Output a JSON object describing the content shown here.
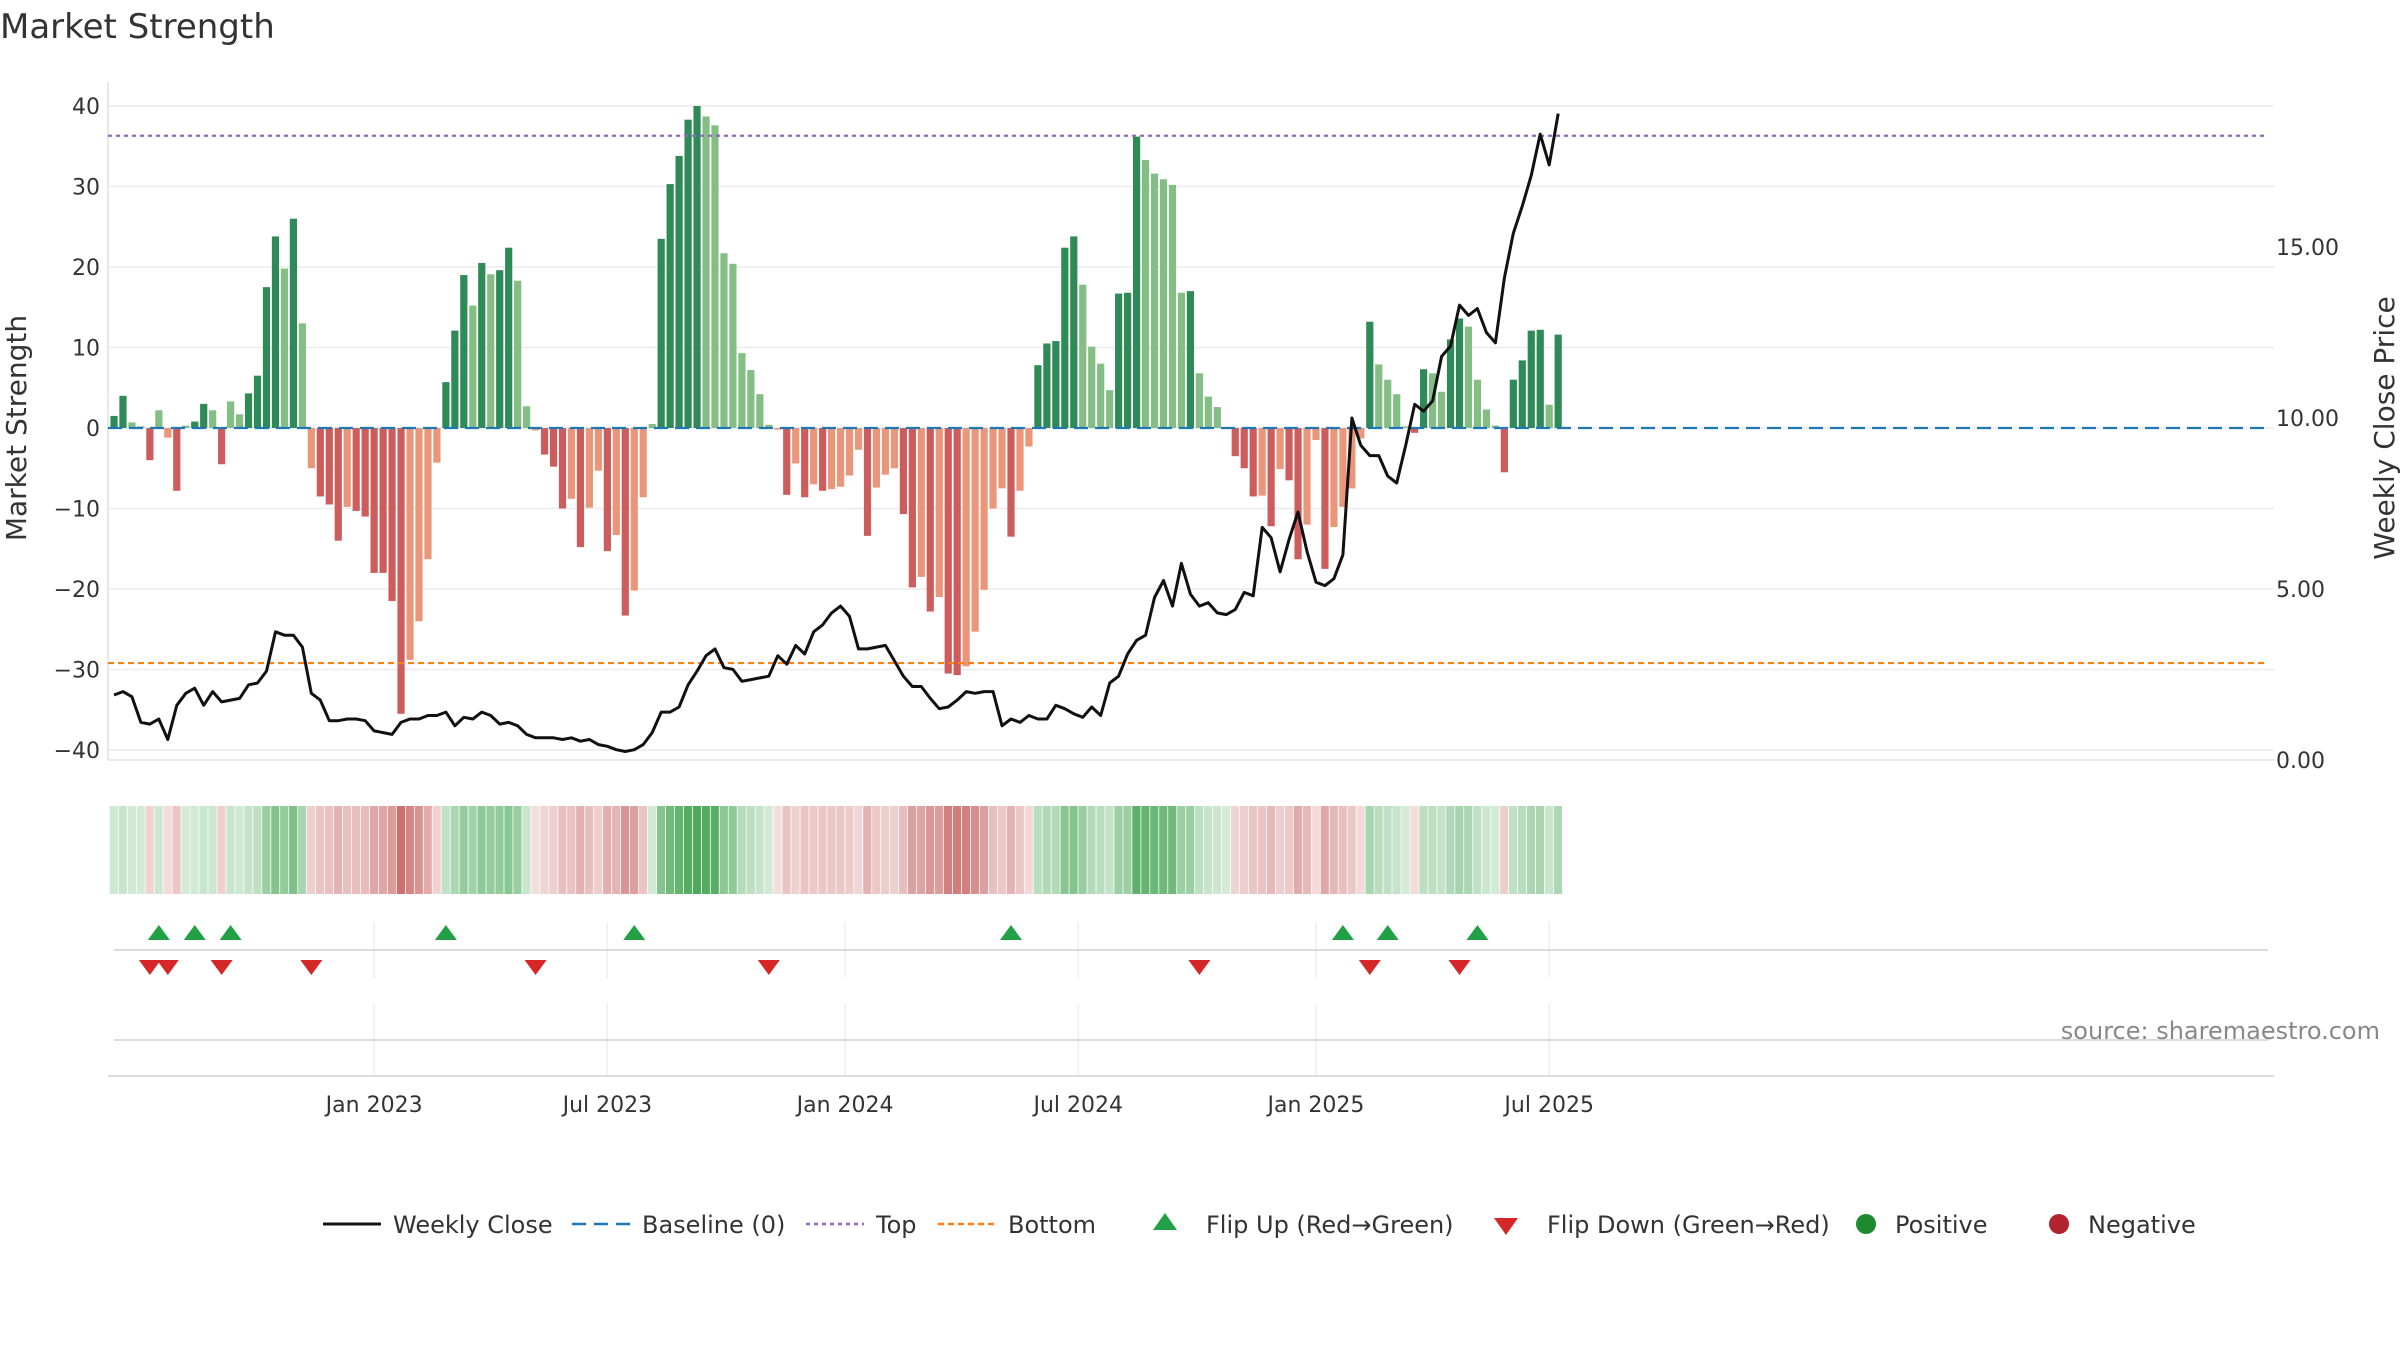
{
  "chart_data": {
    "type": "bar",
    "title": "Market Strength",
    "ylabel_left": "Market Strength",
    "ylabel_right": "Weekly Close Price",
    "left_axis": {
      "range": [
        -42,
        40
      ],
      "ticks": [
        40,
        30,
        20,
        10,
        0,
        -10,
        -20,
        -30,
        -40
      ],
      "tick_labels": [
        "40",
        "30",
        "20",
        "10",
        "0",
        "−10",
        "−20",
        "−30",
        "−40"
      ]
    },
    "right_axis": {
      "range": [
        0,
        20.2
      ],
      "ticks": [
        0,
        5,
        10,
        15
      ],
      "tick_labels": [
        "0.00",
        "5.00",
        "10.00",
        "15.00"
      ]
    },
    "x_ticks": [
      {
        "label": "Jan 2023",
        "week": 29
      },
      {
        "label": "Jul 2023",
        "week": 55
      },
      {
        "label": "Jan 2024",
        "week": 81.5
      },
      {
        "label": "Jul 2024",
        "week": 107.5
      },
      {
        "label": "Jan 2025",
        "week": 134
      },
      {
        "label": "Jul 2025",
        "week": 160
      }
    ],
    "top_level": 36.3,
    "bottom_level": -29.2,
    "strength": [
      1.5,
      4,
      0.7,
      0.2,
      -4,
      2.2,
      -1.2,
      -7.8,
      0.3,
      0.8,
      3,
      2.2,
      -4.5,
      3.3,
      1.7,
      4.3,
      6.5,
      17.5,
      23.8,
      19.8,
      26,
      13,
      -5,
      -8.5,
      -9.5,
      -14,
      -9.8,
      -10.3,
      -11,
      -18,
      -18,
      -21.5,
      -35.5,
      -28.8,
      -24,
      -16.3,
      -4.3,
      5.7,
      12.1,
      19,
      15.2,
      20.5,
      19.1,
      19.6,
      22.4,
      18.3,
      2.7,
      -0.3,
      -3.3,
      -4.8,
      -10,
      -8.8,
      -14.8,
      -9.9,
      -5.3,
      -15.3,
      -13.3,
      -23.3,
      -20.2,
      -8.6,
      0.5,
      23.5,
      30.3,
      33.8,
      38.3,
      40,
      38.7,
      37.6,
      21.7,
      20.4,
      9.3,
      7.2,
      4.2,
      0.4,
      -0.2,
      -8.3,
      -4.4,
      -8.6,
      -7,
      -7.8,
      -7.6,
      -7.3,
      -5.9,
      -2.7,
      -13.4,
      -7.4,
      -5.8,
      -5,
      -10.7,
      -19.8,
      -18.5,
      -22.8,
      -21,
      -30.5,
      -30.7,
      -29.6,
      -25.3,
      -20.1,
      -10,
      -7.5,
      -13.5,
      -7.8,
      -2.3,
      7.8,
      10.5,
      10.8,
      22.4,
      23.8,
      17.8,
      10.1,
      8,
      4.7,
      16.7,
      16.8,
      36.2,
      33.3,
      31.6,
      30.9,
      30.2,
      16.8,
      17,
      6.8,
      3.9,
      2.6,
      0,
      -3.5,
      -5,
      -8.5,
      -8.4,
      -12.2,
      -5.1,
      -6.5,
      -16.3,
      -12,
      -1.5,
      -17.5,
      -12.3,
      -9.8,
      -7.5,
      -1.3,
      13.2,
      7.9,
      6,
      4.2,
      0.2,
      -0.6,
      7.3,
      6.8,
      4.5,
      11,
      13.6,
      12.6,
      6,
      2.3,
      0.3,
      -5.5,
      6,
      8.4,
      12.1,
      12.2,
      2.9,
      11.6
    ],
    "weekly_close": [
      1.9,
      2,
      1.85,
      1.1,
      1.05,
      1.2,
      0.6,
      1.6,
      1.95,
      2.1,
      1.6,
      2,
      1.7,
      1.75,
      1.8,
      2.2,
      2.25,
      2.6,
      3.75,
      3.65,
      3.65,
      3.3,
      1.95,
      1.75,
      1.15,
      1.15,
      1.2,
      1.2,
      1.15,
      0.85,
      0.8,
      0.75,
      1.1,
      1.2,
      1.2,
      1.3,
      1.3,
      1.4,
      1,
      1.25,
      1.2,
      1.4,
      1.3,
      1.05,
      1.1,
      1,
      0.75,
      0.65,
      0.65,
      0.65,
      0.6,
      0.65,
      0.55,
      0.6,
      0.45,
      0.4,
      0.3,
      0.25,
      0.3,
      0.45,
      0.8,
      1.4,
      1.4,
      1.55,
      2.2,
      2.6,
      3.05,
      3.25,
      2.7,
      2.65,
      2.3,
      2.35,
      2.4,
      2.45,
      3.05,
      2.8,
      3.35,
      3.1,
      3.75,
      3.95,
      4.3,
      4.5,
      4.2,
      3.25,
      3.25,
      3.3,
      3.35,
      2.9,
      2.45,
      2.15,
      2.15,
      1.8,
      1.5,
      1.55,
      1.75,
      2,
      1.95,
      2,
      2,
      1,
      1.2,
      1.1,
      1.3,
      1.2,
      1.2,
      1.6,
      1.5,
      1.35,
      1.25,
      1.55,
      1.3,
      2.25,
      2.45,
      3.1,
      3.5,
      3.65,
      4.75,
      5.25,
      4.5,
      5.75,
      4.85,
      4.5,
      4.6,
      4.3,
      4.25,
      4.4,
      4.9,
      4.8,
      6.8,
      6.5,
      5.5,
      6.45,
      7.25,
      6.1,
      5.2,
      5.1,
      5.3,
      6,
      10,
      9.2,
      8.9,
      8.9,
      8.3,
      8.1,
      9.2,
      10.4,
      10.2,
      10.5,
      11.8,
      12.1,
      13.3,
      13,
      13.2,
      12.5,
      12.2,
      14.1,
      15.4,
      16.2,
      17.1,
      18.3,
      17.4,
      18.9
    ],
    "flip_up_weeks": [
      5,
      9,
      13,
      37,
      58,
      100,
      137,
      142,
      152
    ],
    "flip_down_weeks": [
      4,
      6,
      12,
      22,
      47,
      73,
      121,
      140,
      150
    ],
    "positive_color": "#2e8b57",
    "positive_light_color": "#84be84",
    "negative_color": "#cd5c5c",
    "negative_light_color": "#e9967a",
    "line_color": "#111111",
    "baseline_color": "#1f77b4",
    "top_color": "#9467bd",
    "bottom_color": "#ff7f0e",
    "flip_up_color": "#22a045",
    "flip_down_color": "#d62728",
    "legend": [
      {
        "label": "Weekly Close",
        "kind": "line"
      },
      {
        "label": "Baseline (0)",
        "kind": "baseline"
      },
      {
        "label": "Top",
        "kind": "top"
      },
      {
        "label": "Bottom",
        "kind": "bottom"
      },
      {
        "label": "Flip Up (Red→Green)",
        "kind": "up"
      },
      {
        "label": "Flip Down (Green→Red)",
        "kind": "down"
      },
      {
        "label": "Positive",
        "kind": "pos"
      },
      {
        "label": "Negative",
        "kind": "neg"
      }
    ],
    "legend_location": "bottom-center",
    "source": "source: sharemaestro.com"
  }
}
